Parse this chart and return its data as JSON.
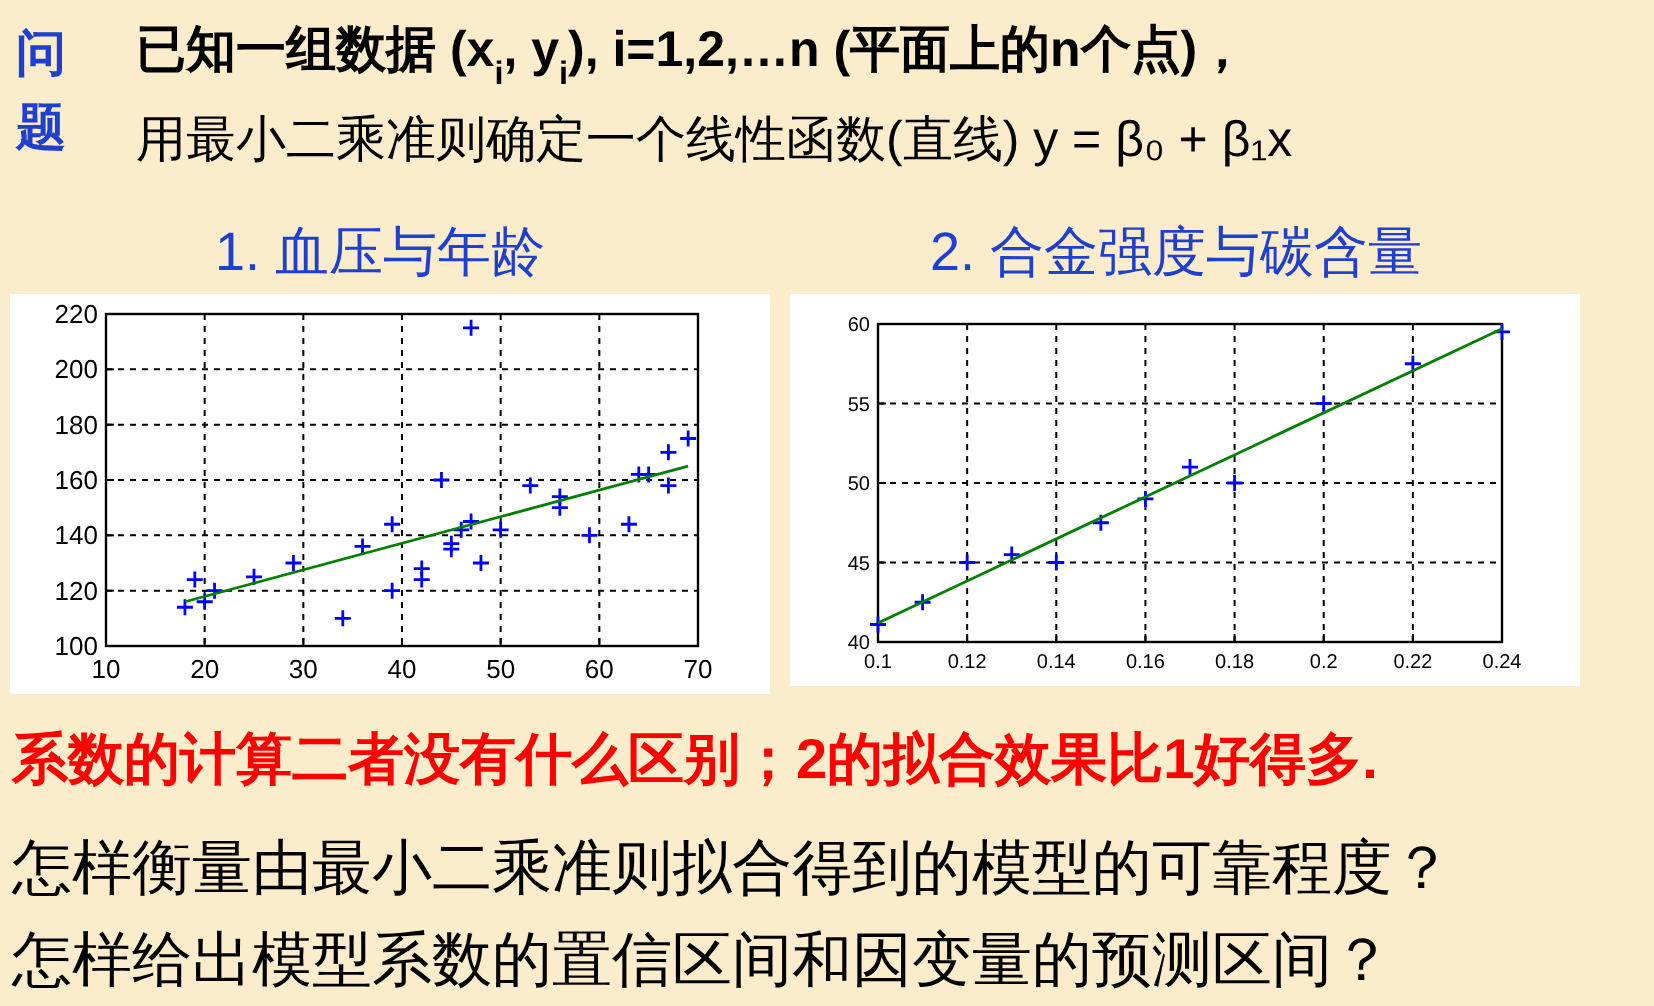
{
  "chart_data": [
    {
      "type": "other",
      "annotations": [
        "问题",
        "已知一组数据 (x$_{i}$, y$_{i}$), i=1,2,…n (平面上的n个点)，",
        "用最小二乘准则确定一个线性函数(直线) y = β₀ + β₁x"
      ]
    },
    {
      "type": "scatter",
      "title": "1. 血压与年龄",
      "xlim": [
        10,
        70
      ],
      "ylim": [
        100,
        220
      ],
      "xticks": [
        10,
        20,
        30,
        40,
        50,
        60,
        70
      ],
      "yticks": [
        100,
        120,
        140,
        160,
        180,
        200,
        220
      ],
      "grid": true,
      "series": [
        {
          "type": "scatter",
          "color": "#0000ff",
          "marker": "cross",
          "x": [
            18,
            19,
            20,
            21,
            25,
            29,
            34,
            36,
            39,
            39,
            42,
            42,
            44,
            45,
            45,
            46,
            47,
            47,
            48,
            50,
            53,
            56,
            56,
            59,
            63,
            64,
            65,
            67,
            67,
            69
          ],
          "values": [
            114,
            124,
            116,
            120,
            125,
            130,
            110,
            136,
            144,
            120,
            128,
            124,
            160,
            137,
            135,
            142,
            145,
            215,
            130,
            142,
            158,
            154,
            150,
            140,
            144,
            162,
            162,
            170,
            158,
            175
          ]
        },
        {
          "type": "line",
          "color": "#008000",
          "x": [
            18,
            69
          ],
          "values": [
            116,
            165
          ]
        }
      ]
    },
    {
      "type": "scatter",
      "title": "2. 合金强度与碳含量",
      "xlim": [
        0.1,
        0.24
      ],
      "ylim": [
        40,
        60
      ],
      "xticks": [
        0.1,
        0.12,
        0.14,
        0.16,
        0.18,
        0.2,
        0.22,
        0.24
      ],
      "yticks": [
        40,
        45,
        50,
        55,
        60
      ],
      "grid": true,
      "series": [
        {
          "type": "scatter",
          "color": "#0000ff",
          "marker": "cross",
          "x": [
            0.1,
            0.11,
            0.12,
            0.13,
            0.14,
            0.15,
            0.16,
            0.17,
            0.18,
            0.2,
            0.22,
            0.24
          ],
          "values": [
            41.1,
            42.5,
            45,
            45.5,
            45,
            47.5,
            49,
            51,
            50,
            55,
            57.5,
            59.5
          ]
        },
        {
          "type": "line",
          "color": "#008000",
          "x": [
            0.1,
            0.24
          ],
          "values": [
            41.2,
            59.7
          ]
        }
      ]
    },
    {
      "type": "other",
      "annotations": [
        "系数的计算二者没有什么区别；2的拟合效果比1好得多.",
        "怎样衡量由最小二乘准则拟合得到的模型的可靠程度？",
        "怎样给出模型系数的置信区间和因变量的预测区间？"
      ]
    }
  ]
}
